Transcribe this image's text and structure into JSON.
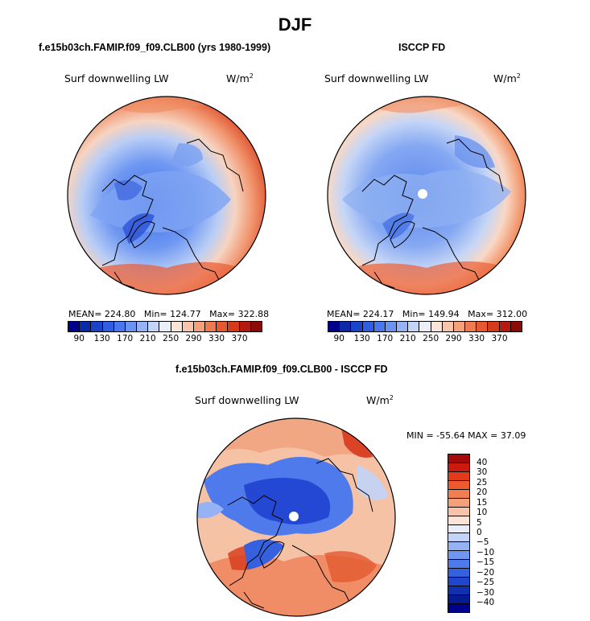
{
  "figure_title": "DJF",
  "panels": [
    {
      "title": "f.e15b03ch.FAMIP.f09_f09.CLB00 (yrs 1980-1999)",
      "variable": "Surf downwelling LW",
      "units": "W/m",
      "units_exp": "2",
      "mean_text": "MEAN= 224.80",
      "min_text": "Min= 124.77",
      "max_text": "Max= 322.88"
    },
    {
      "title": "ISCCP FD",
      "variable": "Surf downwelling LW",
      "units": "W/m",
      "units_exp": "2",
      "mean_text": "MEAN= 224.17",
      "min_text": "Min= 149.94",
      "max_text": "Max= 312.00"
    }
  ],
  "diff_panel": {
    "title": "f.e15b03ch.FAMIP.f09_f09.CLB00 - ISCCP FD",
    "variable": "Surf downwelling LW",
    "units": "W/m",
    "units_exp": "2",
    "minmax_text": "MIN = -55.64 MAX =  37.09"
  },
  "colorbar_abs": {
    "colors": [
      "#00008c",
      "#0a2aa8",
      "#1a44c8",
      "#2f5ee0",
      "#4a78ec",
      "#6b93f0",
      "#95b3f4",
      "#c2d4f8",
      "#eaeef8",
      "#fbe3d6",
      "#f8c4aa",
      "#f4a07a",
      "#ee7a50",
      "#e65830",
      "#d63a1c",
      "#b51a10",
      "#8c0a08"
    ],
    "labels": [
      "90",
      "130",
      "170",
      "210",
      "250",
      "290",
      "330",
      "370"
    ]
  },
  "colorbar_diff": {
    "colors_top_to_bottom": [
      "#a40a0a",
      "#cc1a10",
      "#e33a1c",
      "#ee5a2e",
      "#f27d50",
      "#f5a078",
      "#f8c3a8",
      "#fbe4d6",
      "#eaeef8",
      "#c2d4f8",
      "#95b3f4",
      "#6f96f0",
      "#4e7aec",
      "#3560e0",
      "#1f46cc",
      "#1030b0",
      "#061a94",
      "#00008c"
    ],
    "labels": [
      "40",
      "30",
      "25",
      "20",
      "15",
      "10",
      "5",
      "0",
      "−5",
      "−10",
      "−15",
      "−20",
      "−25",
      "−30",
      "−40"
    ]
  }
}
